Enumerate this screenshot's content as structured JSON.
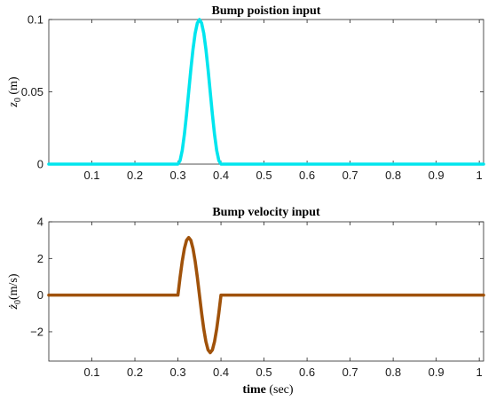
{
  "chart_data": [
    {
      "type": "line",
      "title": "Bump poistion input",
      "ylabel": "z0 (m)",
      "ylabel_parts": {
        "sym": "z",
        "sub": "0",
        "unit": " (m)"
      },
      "xlim": [
        0,
        1.01
      ],
      "ylim": [
        0,
        0.1
      ],
      "xticks": [
        0.1,
        0.2,
        0.3,
        0.4,
        0.5,
        0.6,
        0.7,
        0.8,
        0.9,
        1
      ],
      "yticks": [
        0,
        0.05,
        0.1
      ],
      "xtick_labels": [
        "0.1",
        "0.2",
        "0.3",
        "0.4",
        "0.5",
        "0.6",
        "0.7",
        "0.8",
        "0.9",
        "1"
      ],
      "ytick_labels": [
        "0",
        "0.05",
        "0.1"
      ],
      "series": [
        {
          "color": "#00e5ee",
          "x": [
            0,
            0.3,
            0.305,
            0.31,
            0.315,
            0.32,
            0.325,
            0.33,
            0.335,
            0.34,
            0.345,
            0.35,
            0.355,
            0.36,
            0.365,
            0.37,
            0.375,
            0.38,
            0.385,
            0.39,
            0.395,
            0.4,
            1.01
          ],
          "y": [
            0,
            0,
            0.0025,
            0.0095,
            0.0206,
            0.0345,
            0.05,
            0.0655,
            0.0794,
            0.0905,
            0.0975,
            0.1,
            0.0975,
            0.0905,
            0.0794,
            0.0655,
            0.05,
            0.0345,
            0.0206,
            0.0095,
            0.0025,
            0,
            0
          ]
        }
      ]
    },
    {
      "type": "line",
      "title": "Bump velocity input",
      "ylabel": "ż0(m/s)",
      "ylabel_parts": {
        "sym": "ż",
        "sub": "0",
        "unit": "(m/s)"
      },
      "xlabel": "time (sec)",
      "xlabel_parts": {
        "bold": "time",
        "rest": " (sec)"
      },
      "xlim": [
        0,
        1.01
      ],
      "ylim": [
        -3.6,
        4
      ],
      "xticks": [
        0.1,
        0.2,
        0.3,
        0.4,
        0.5,
        0.6,
        0.7,
        0.8,
        0.9,
        1
      ],
      "yticks": [
        -2,
        0,
        2,
        4
      ],
      "xtick_labels": [
        "0.1",
        "0.2",
        "0.3",
        "0.4",
        "0.5",
        "0.6",
        "0.7",
        "0.8",
        "0.9",
        "1"
      ],
      "ytick_labels": [
        "−2",
        "0",
        "2",
        "4"
      ],
      "series": [
        {
          "color": "#a0520a",
          "x": [
            0,
            0.3,
            0.305,
            0.31,
            0.315,
            0.32,
            0.325,
            0.33,
            0.335,
            0.34,
            0.345,
            0.35,
            0.355,
            0.36,
            0.365,
            0.37,
            0.375,
            0.38,
            0.385,
            0.39,
            0.395,
            0.4,
            1.01
          ],
          "y": [
            0,
            0,
            0.98,
            1.85,
            2.54,
            2.99,
            3.14,
            2.99,
            2.54,
            1.85,
            0.98,
            0,
            -0.98,
            -1.85,
            -2.54,
            -2.99,
            -3.14,
            -2.99,
            -2.54,
            -1.85,
            -0.98,
            0,
            0
          ]
        }
      ]
    }
  ]
}
